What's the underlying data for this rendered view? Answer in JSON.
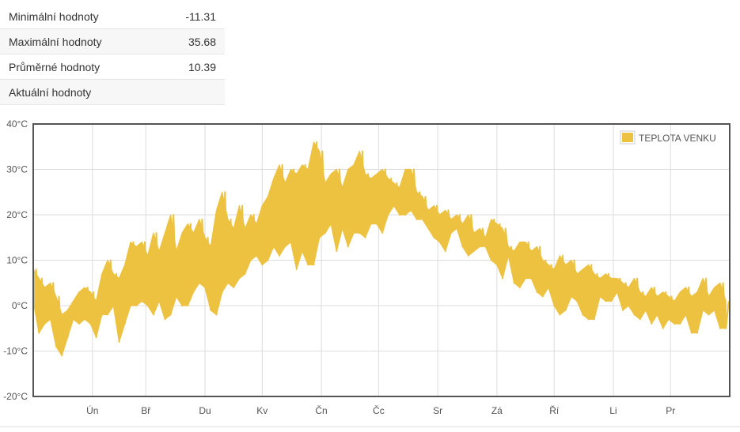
{
  "stats": [
    {
      "label": "Minimální hodnoty",
      "value": "-11.31"
    },
    {
      "label": "Maximální hodnoty",
      "value": "35.68"
    },
    {
      "label": "Průměrné hodnoty",
      "value": "10.39"
    },
    {
      "label": "Aktuální hodnoty",
      "value": ""
    }
  ],
  "chart_data": {
    "type": "line",
    "title": "",
    "xlabel": "",
    "ylabel": "",
    "ylim": [
      -20,
      40
    ],
    "yticks": [
      -20,
      -10,
      0,
      10,
      20,
      30,
      40
    ],
    "ytick_labels": [
      "-20°C",
      "-10°C",
      "0°C",
      "10°C",
      "20°C",
      "30°C",
      "40°C"
    ],
    "xlim": [
      0,
      365
    ],
    "xticks": [
      31,
      59,
      90,
      120,
      151,
      181,
      212,
      243,
      273,
      304,
      334
    ],
    "xtick_labels": [
      "Ún",
      "Bř",
      "Du",
      "Kv",
      "Čn",
      "Čc",
      "Sr",
      "Zá",
      "Ří",
      "Li",
      "Pr"
    ],
    "grid": true,
    "legend_position": "top-right",
    "series": [
      {
        "name": "TEPLOTA VENKU",
        "color": "#edc240",
        "x_step_days": 3,
        "low": [
          1,
          -6,
          -4,
          -3,
          -9,
          -11,
          -7,
          -3,
          -4,
          -3,
          -4,
          -7,
          -2,
          -2,
          0,
          -8,
          -4,
          0,
          0,
          1,
          0,
          -2,
          1,
          -3,
          -2,
          2,
          0,
          0,
          3,
          5,
          4,
          -1,
          -2,
          3,
          5,
          4,
          6,
          7,
          10,
          11,
          9,
          10,
          13,
          11,
          13,
          14,
          8,
          12,
          9,
          9,
          15,
          16,
          18,
          12,
          17,
          13,
          16,
          16,
          15,
          18,
          18,
          16,
          20,
          22,
          20,
          20,
          21,
          19,
          19,
          17,
          15,
          14,
          12,
          16,
          17,
          13,
          11,
          12,
          13,
          13,
          10,
          9,
          6,
          11,
          5,
          4,
          6,
          6,
          3,
          2,
          4,
          0,
          -2,
          -1,
          2,
          1,
          -2,
          -3,
          -3,
          2,
          1,
          1,
          3,
          -1,
          0,
          -2,
          -3,
          -1,
          -4,
          -2,
          -5,
          -3,
          -4,
          -4,
          -2,
          -6,
          -6,
          -1,
          -2,
          -1,
          -5,
          -5
        ],
        "high": [
          8,
          6,
          4,
          5,
          2,
          -2,
          -1,
          1,
          3,
          4,
          3,
          1,
          7,
          10,
          7,
          6,
          9,
          14,
          13,
          14,
          11,
          16,
          12,
          16,
          20,
          12,
          16,
          18,
          16,
          19,
          15,
          13,
          21,
          25,
          19,
          17,
          22,
          17,
          20,
          18,
          22,
          24,
          28,
          31,
          27,
          30,
          29,
          31,
          30,
          36,
          34,
          27,
          29,
          30,
          26,
          30,
          31,
          34,
          29,
          28,
          29,
          30,
          28,
          27,
          26,
          30,
          30,
          25,
          24,
          21,
          22,
          20,
          21,
          19,
          20,
          18,
          20,
          16,
          17,
          15,
          19,
          18,
          17,
          13,
          12,
          14,
          14,
          12,
          13,
          10,
          9,
          8,
          11,
          9,
          10,
          7,
          8,
          9,
          7,
          6,
          7,
          6,
          6,
          5,
          4,
          6,
          3,
          2,
          4,
          2,
          3,
          2,
          1,
          3,
          4,
          2,
          3,
          6,
          2,
          4,
          5,
          1
        ]
      }
    ]
  }
}
